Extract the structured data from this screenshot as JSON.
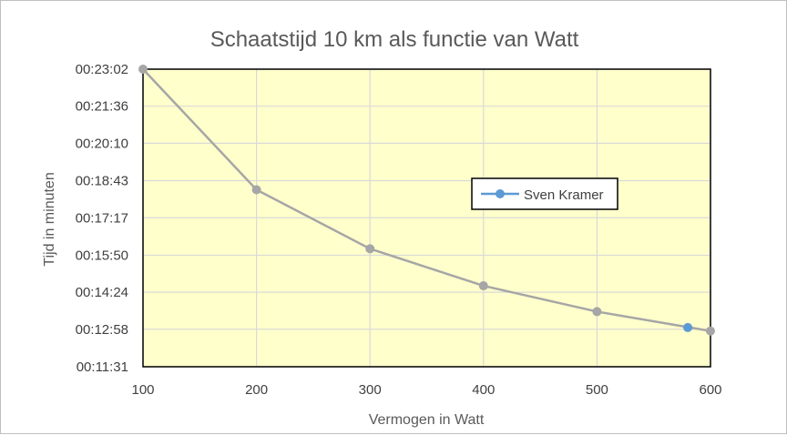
{
  "chart_data": {
    "type": "scatter",
    "title": "Schaatstijd 10 km als functie van Watt",
    "xlabel": "Vermogen in Watt",
    "ylabel": "Tijd in minuten",
    "xlim": [
      100,
      600
    ],
    "x_ticks": [
      "100",
      "200",
      "300",
      "400",
      "500",
      "600"
    ],
    "x_tick_values": [
      100,
      200,
      300,
      400,
      500,
      600
    ],
    "y_ticks": [
      "00:11:31",
      "00:12:58",
      "00:14:24",
      "00:15:50",
      "00:17:17",
      "00:18:43",
      "00:20:10",
      "00:21:36",
      "00:23:02"
    ],
    "y_tick_values_s": [
      691,
      778,
      864,
      950,
      1037,
      1123,
      1210,
      1296,
      1382
    ],
    "ylim_s": [
      691,
      1382
    ],
    "grid": true,
    "plot_background": "#ffffcc",
    "legend_position": "right",
    "series": [
      {
        "x": [
          100,
          200,
          300,
          400,
          500,
          600
        ],
        "y_s": [
          1382,
          1102,
          965,
          879,
          819,
          774
        ],
        "color": "#a6a6a6",
        "style": "line-markers"
      },
      {
        "name": "Sven Kramer",
        "x": [
          580
        ],
        "y_s": [
          782
        ],
        "color": "#5b9bd5",
        "style": "marker"
      }
    ]
  }
}
